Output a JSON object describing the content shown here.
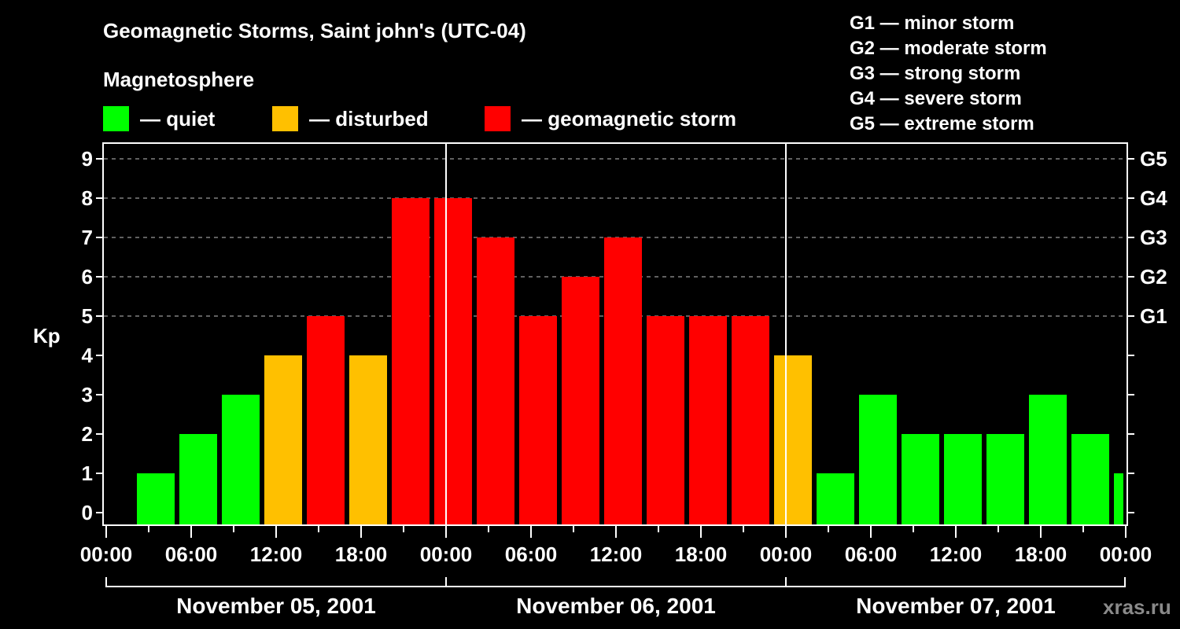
{
  "header": {
    "title": "Geomagnetic Storms, Saint john's (UTC-04)",
    "subtitle": "Magnetosphere",
    "legend": [
      {
        "label": "— quiet",
        "color": "#00ff00"
      },
      {
        "label": "— disturbed",
        "color": "#ffc000"
      },
      {
        "label": "— geomagnetic storm",
        "color": "#ff0000"
      }
    ],
    "g_scale": [
      "G1 — minor storm",
      "G2 — moderate storm",
      "G3 — strong storm",
      "G4 — severe storm",
      "G5 — extreme storm"
    ]
  },
  "axes": {
    "y_label": "Kp",
    "y_ticks": [
      "0",
      "1",
      "2",
      "3",
      "4",
      "5",
      "6",
      "7",
      "8",
      "9"
    ],
    "g_ticks": [
      {
        "kp": 5,
        "label": "G1"
      },
      {
        "kp": 6,
        "label": "G2"
      },
      {
        "kp": 7,
        "label": "G3"
      },
      {
        "kp": 8,
        "label": "G4"
      },
      {
        "kp": 9,
        "label": "G5"
      }
    ],
    "x_ticks": [
      "00:00",
      "06:00",
      "12:00",
      "18:00",
      "00:00",
      "06:00",
      "12:00",
      "18:00",
      "00:00",
      "06:00",
      "12:00",
      "18:00",
      "00:00"
    ],
    "dates": [
      "November 05, 2001",
      "November 06, 2001",
      "November 07, 2001"
    ]
  },
  "watermark": "xras.ru",
  "colors": {
    "quiet": "#00ff00",
    "disturbed": "#ffc000",
    "storm": "#ff0000",
    "grid": "#808080"
  },
  "chart_data": {
    "type": "bar",
    "title": "Geomagnetic Storms, Saint john's (UTC-04)",
    "xlabel": "",
    "ylabel": "Kp",
    "ylim": [
      0,
      9
    ],
    "grid": "dashed horizontal at Kp 5-9",
    "interval": "3 hours",
    "categories": [
      "Nov 05 00:00",
      "Nov 05 03:00",
      "Nov 05 06:00",
      "Nov 05 09:00",
      "Nov 05 12:00",
      "Nov 05 15:00",
      "Nov 05 18:00",
      "Nov 05 21:00",
      "Nov 06 00:00",
      "Nov 06 03:00",
      "Nov 06 06:00",
      "Nov 06 09:00",
      "Nov 06 12:00",
      "Nov 06 15:00",
      "Nov 06 18:00",
      "Nov 06 21:00",
      "Nov 07 00:00",
      "Nov 07 03:00",
      "Nov 07 06:00",
      "Nov 07 09:00",
      "Nov 07 12:00",
      "Nov 07 15:00",
      "Nov 07 18:00",
      "Nov 07 21:00"
    ],
    "values": [
      1,
      2,
      3,
      4,
      5,
      4,
      8,
      8,
      7,
      5,
      6,
      7,
      5,
      5,
      5,
      4,
      1,
      3,
      2,
      2,
      2,
      3,
      2,
      1
    ],
    "status": [
      "quiet",
      "quiet",
      "quiet",
      "disturbed",
      "storm",
      "disturbed",
      "storm",
      "storm",
      "storm",
      "storm",
      "storm",
      "storm",
      "storm",
      "storm",
      "storm",
      "disturbed",
      "quiet",
      "quiet",
      "quiet",
      "quiet",
      "quiet",
      "quiet",
      "quiet",
      "quiet"
    ],
    "right_axis": {
      "G1": 5,
      "G2": 6,
      "G3": 7,
      "G4": 8,
      "G5": 9
    },
    "legend": [
      "quiet",
      "disturbed",
      "geomagnetic storm"
    ]
  }
}
